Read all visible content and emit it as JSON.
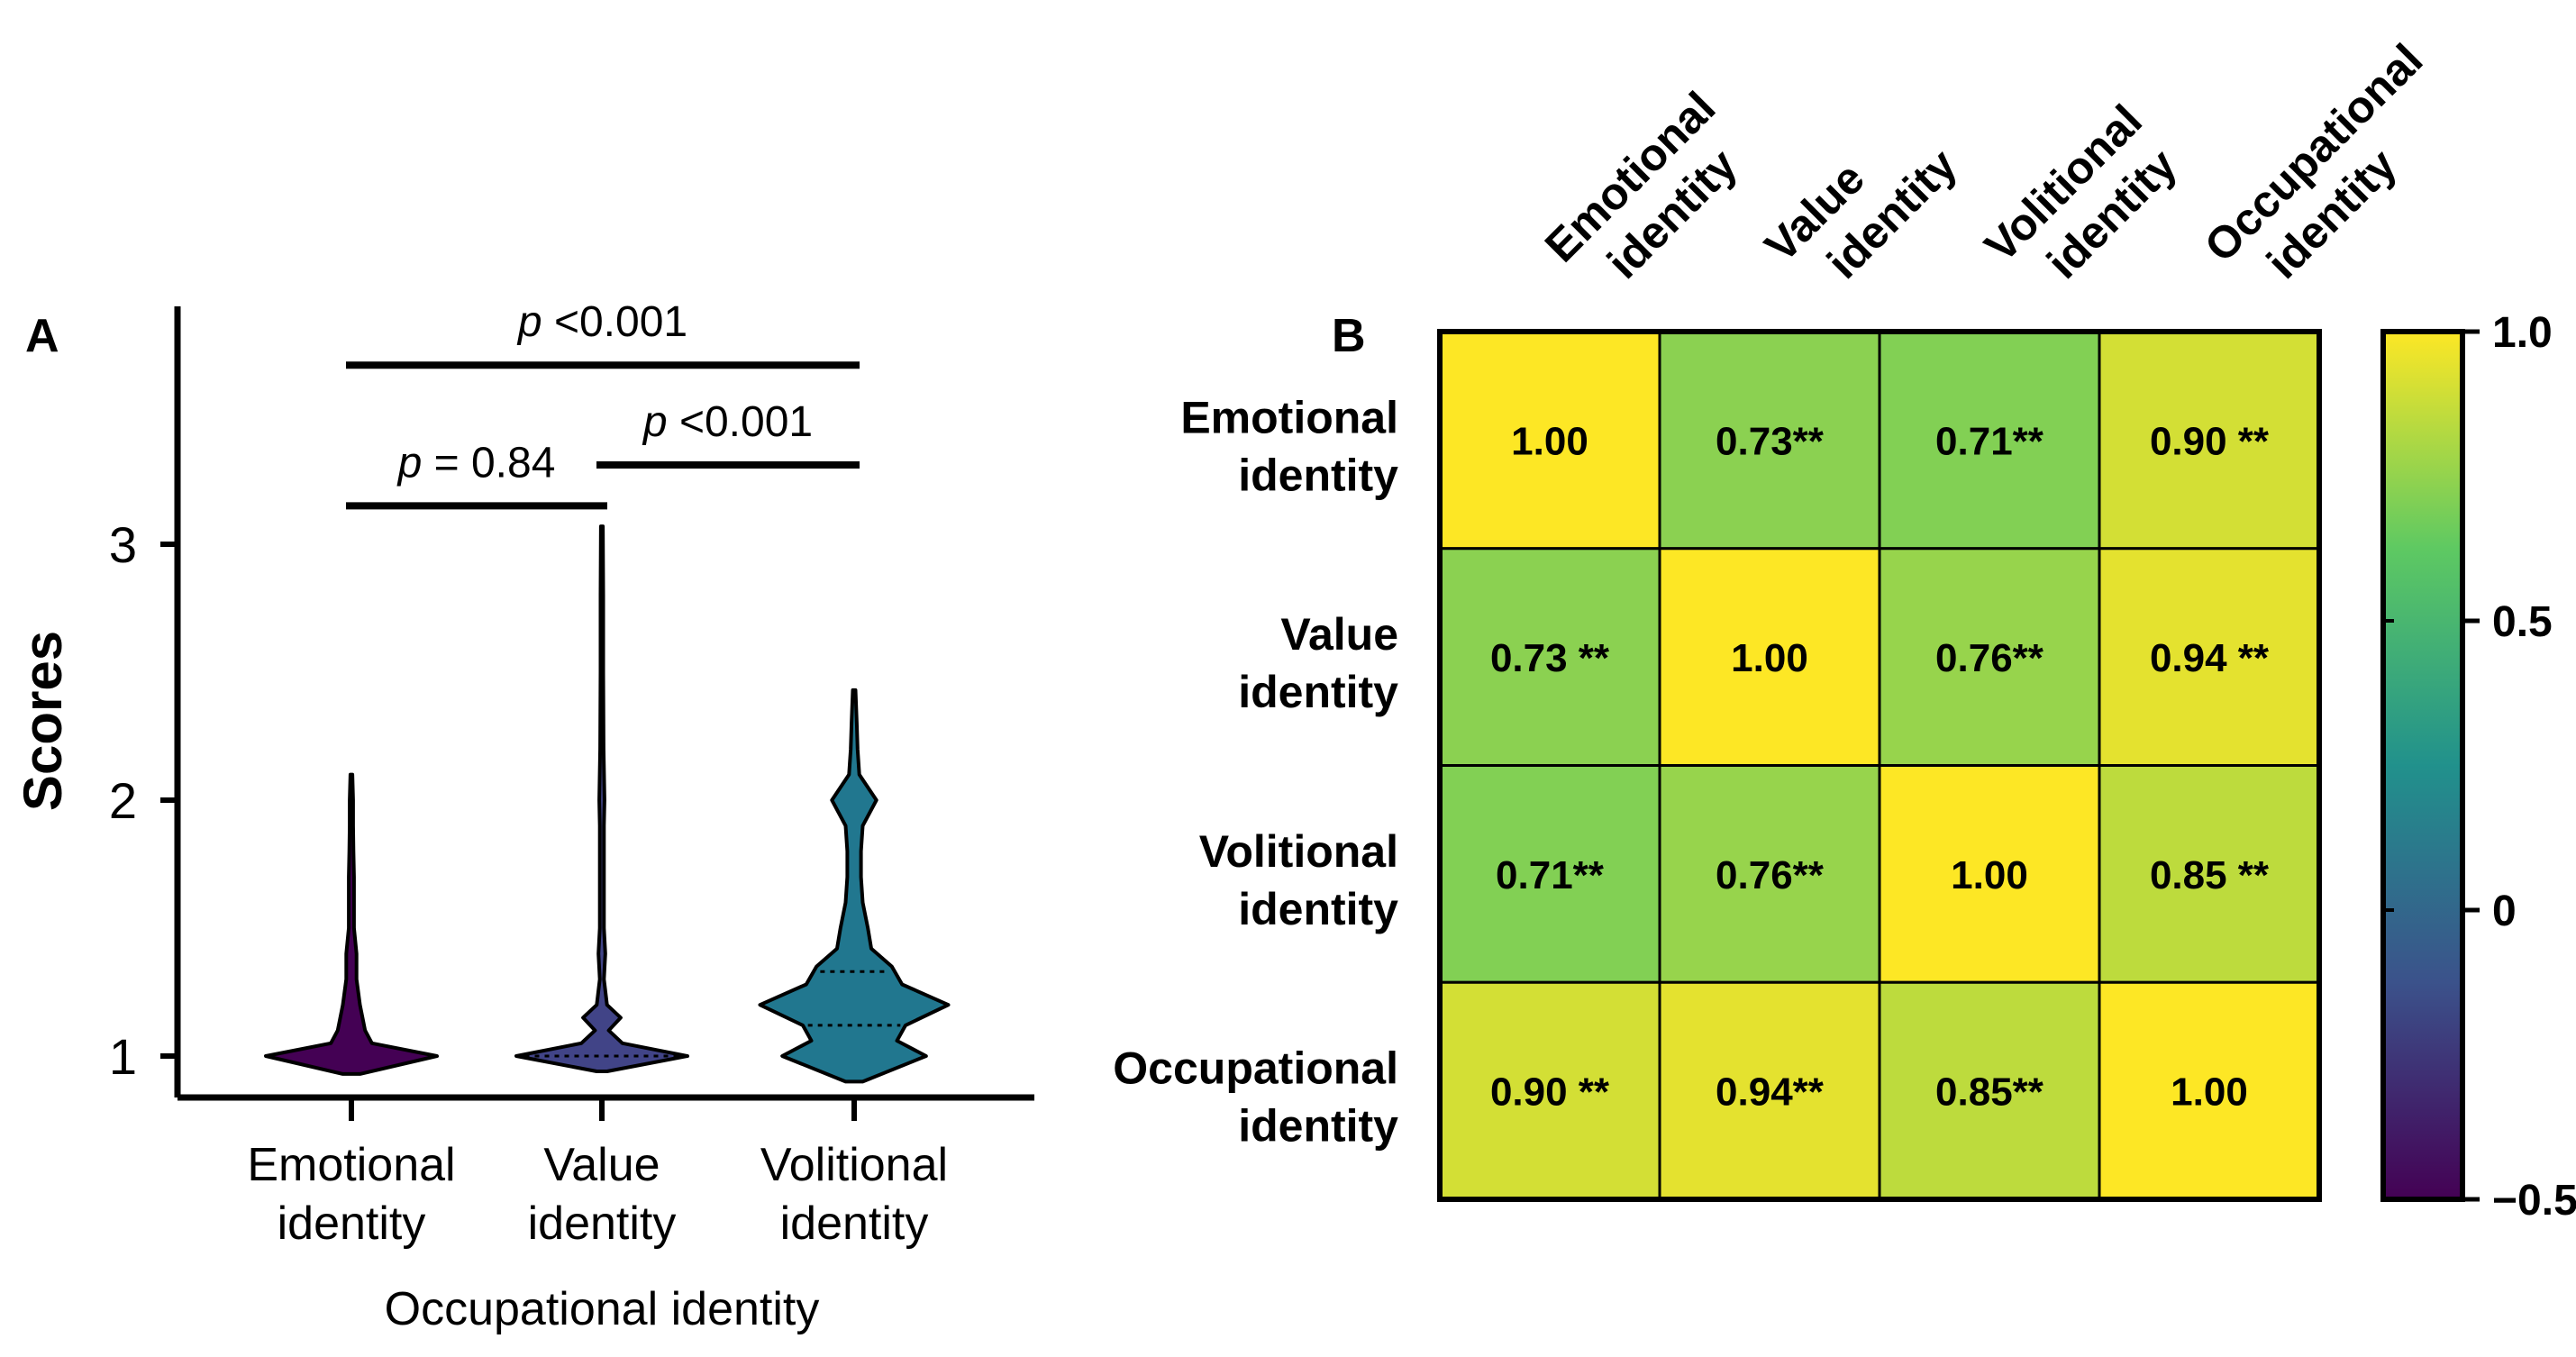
{
  "chart_data": [
    {
      "type": "violin",
      "panel_label": "A",
      "title": "",
      "xlabel": "Occupational identity",
      "ylabel": "Scores",
      "ylim": [
        0.85,
        3.9
      ],
      "yticks": [
        "1",
        "2",
        "3"
      ],
      "categories": [
        {
          "line1": "Emotional",
          "line2": "identity",
          "color": "#440154",
          "distribution": [
            [
              0.93,
              0.05
            ],
            [
              1.0,
              0.5
            ],
            [
              1.05,
              0.12
            ],
            [
              1.1,
              0.08
            ],
            [
              1.2,
              0.05
            ],
            [
              1.3,
              0.03
            ],
            [
              1.4,
              0.03
            ],
            [
              1.5,
              0.015
            ],
            [
              1.6,
              0.015
            ],
            [
              1.7,
              0.015
            ],
            [
              1.8,
              0.012
            ],
            [
              1.9,
              0.01
            ],
            [
              2.0,
              0.01
            ],
            [
              2.1,
              0.006
            ]
          ],
          "quartiles": []
        },
        {
          "line1": "Value",
          "line2": "identity",
          "color": "#414487",
          "distribution": [
            [
              0.94,
              0.03
            ],
            [
              1.0,
              0.5
            ],
            [
              1.05,
              0.12
            ],
            [
              1.1,
              0.04
            ],
            [
              1.15,
              0.11
            ],
            [
              1.2,
              0.03
            ],
            [
              1.3,
              0.012
            ],
            [
              1.4,
              0.02
            ],
            [
              1.5,
              0.012
            ],
            [
              1.6,
              0.012
            ],
            [
              1.7,
              0.012
            ],
            [
              1.8,
              0.012
            ],
            [
              1.9,
              0.012
            ],
            [
              2.0,
              0.015
            ],
            [
              2.2,
              0.01
            ],
            [
              2.5,
              0.008
            ],
            [
              2.8,
              0.008
            ],
            [
              3.07,
              0.006
            ]
          ],
          "quartiles": [
            1.0
          ]
        },
        {
          "line1": "Volitional",
          "line2": "identity",
          "color": "#21778f",
          "distribution": [
            [
              0.9,
              0.05
            ],
            [
              1.0,
              0.42
            ],
            [
              1.06,
              0.25
            ],
            [
              1.12,
              0.3
            ],
            [
              1.2,
              0.55
            ],
            [
              1.28,
              0.28
            ],
            [
              1.35,
              0.22
            ],
            [
              1.42,
              0.1
            ],
            [
              1.5,
              0.08
            ],
            [
              1.6,
              0.05
            ],
            [
              1.7,
              0.04
            ],
            [
              1.8,
              0.04
            ],
            [
              1.9,
              0.05
            ],
            [
              2.0,
              0.13
            ],
            [
              2.1,
              0.03
            ],
            [
              2.2,
              0.02
            ],
            [
              2.3,
              0.015
            ],
            [
              2.43,
              0.008
            ]
          ],
          "quartiles": [
            1.12,
            1.33
          ]
        }
      ],
      "comparisons": [
        {
          "pre": "p",
          "text": " = 0.84",
          "from": 0,
          "to": 1,
          "level": 3.15
        },
        {
          "pre": "p",
          "text": " <0.001",
          "from": 1,
          "to": 2,
          "level": 3.31
        },
        {
          "pre": "p",
          "text": " <0.001",
          "from": 0,
          "to": 2,
          "level": 3.7
        }
      ]
    },
    {
      "type": "heatmap",
      "panel_label": "B",
      "title": "",
      "row_labels": [
        [
          "Emotional",
          "identity"
        ],
        [
          "Value",
          "identity"
        ],
        [
          "Volitional",
          "identity"
        ],
        [
          "Occupational",
          "identity"
        ]
      ],
      "col_labels": [
        [
          "Emotional",
          "identity"
        ],
        [
          "Value",
          "identity"
        ],
        [
          "Volitional",
          "identity"
        ],
        [
          "Occupational",
          "identity"
        ]
      ],
      "values": [
        [
          1.0,
          0.73,
          0.71,
          0.9
        ],
        [
          0.73,
          1.0,
          0.76,
          0.94
        ],
        [
          0.71,
          0.76,
          1.0,
          0.85
        ],
        [
          0.9,
          0.94,
          0.85,
          1.0
        ]
      ],
      "cell_labels": [
        [
          "1.00",
          "0.73**",
          "0.71**",
          "0.90 **"
        ],
        [
          "0.73 **",
          "1.00",
          "0.76**",
          "0.94 **"
        ],
        [
          "0.71**",
          "0.76**",
          "1.00",
          "0.85 **"
        ],
        [
          "0.90 **",
          "0.94**",
          "0.85**",
          "1.00"
        ]
      ],
      "colorbar": {
        "min": -0.5,
        "max": 1.0,
        "tick_labels": [
          "1.0",
          "0.5",
          "0",
          "−0.5"
        ],
        "tick_values": [
          1.0,
          0.5,
          0.0,
          -0.5
        ],
        "colormap": [
          "#440154",
          "#3b528b",
          "#21918c",
          "#5ec962",
          "#fde725"
        ]
      }
    }
  ]
}
